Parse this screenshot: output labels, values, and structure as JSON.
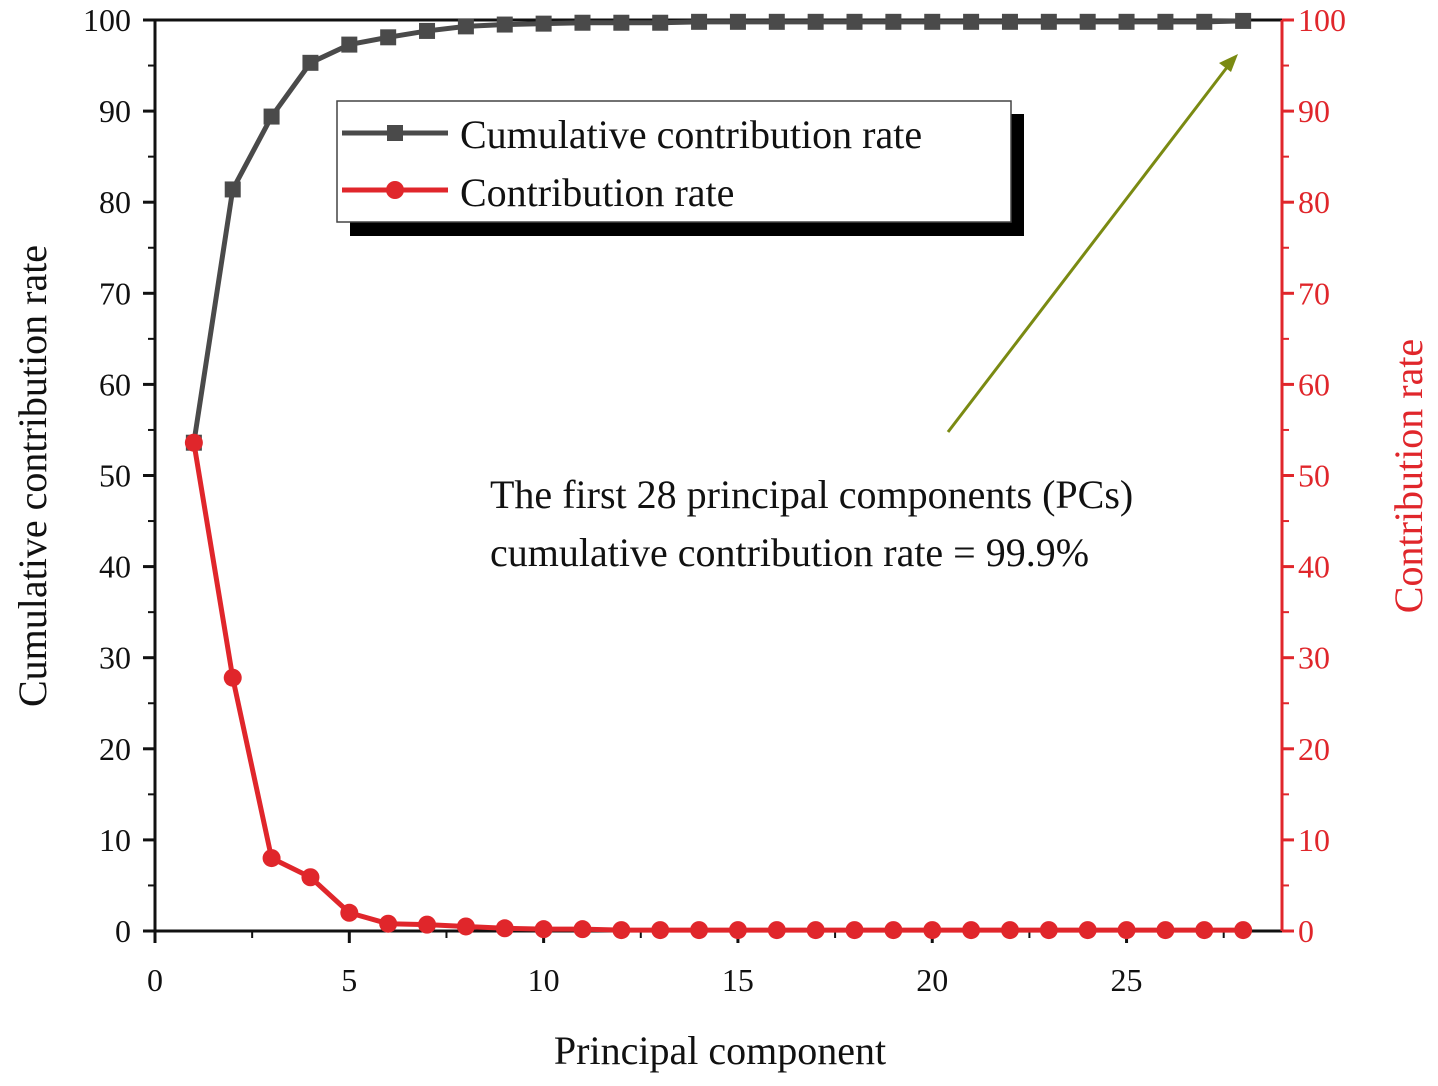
{
  "chart_data": {
    "type": "line",
    "x": [
      1,
      2,
      3,
      4,
      5,
      6,
      7,
      8,
      9,
      10,
      11,
      12,
      13,
      14,
      15,
      16,
      17,
      18,
      19,
      20,
      21,
      22,
      23,
      24,
      25,
      26,
      27,
      28
    ],
    "series": [
      {
        "name": "Cumulative contribution rate",
        "axis": "left",
        "color": "#4a4a4a",
        "marker": "square",
        "values": [
          53.6,
          81.4,
          89.4,
          95.3,
          97.3,
          98.1,
          98.8,
          99.3,
          99.5,
          99.6,
          99.7,
          99.7,
          99.7,
          99.8,
          99.8,
          99.8,
          99.8,
          99.8,
          99.8,
          99.8,
          99.8,
          99.8,
          99.8,
          99.8,
          99.8,
          99.8,
          99.8,
          99.9
        ]
      },
      {
        "name": "Contribution rate",
        "axis": "right",
        "color": "#e0262b",
        "marker": "circle",
        "values": [
          53.6,
          27.8,
          8.0,
          5.9,
          2.0,
          0.8,
          0.7,
          0.5,
          0.3,
          0.2,
          0.2,
          0.1,
          0.1,
          0.1,
          0.1,
          0.1,
          0.1,
          0.1,
          0.1,
          0.1,
          0.1,
          0.1,
          0.1,
          0.1,
          0.1,
          0.1,
          0.1,
          0.1
        ]
      }
    ],
    "xlabel": "Principal component",
    "ylabel_left": "Cumulative contribution rate",
    "ylabel_right": "Contribution rate",
    "xlim": [
      0,
      29
    ],
    "ylim_left": [
      0,
      100
    ],
    "ylim_right": [
      0,
      100
    ],
    "xticks": [
      0,
      5,
      10,
      15,
      20,
      25
    ],
    "yticks_left": [
      0,
      10,
      20,
      30,
      40,
      50,
      60,
      70,
      80,
      90,
      100
    ],
    "yticks_right": [
      0,
      10,
      20,
      30,
      40,
      50,
      60,
      70,
      80,
      90,
      100
    ],
    "legend_position": "top-center",
    "annotation": {
      "line1": "The first 28 principal components (PCs)",
      "line2": "cumulative contribution rate = 99.9%",
      "arrow_color": "#7a8a12"
    },
    "colors": {
      "left_axis": "#111111",
      "right_axis": "#e0262b",
      "plot_frame": "#111111"
    }
  }
}
